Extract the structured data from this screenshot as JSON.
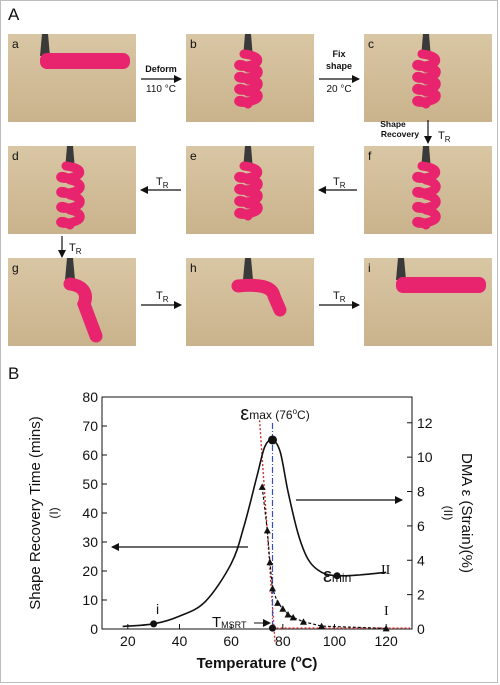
{
  "panel_a": {
    "label": "A",
    "photos": [
      {
        "letter": "a",
        "shape": "straight"
      },
      {
        "letter": "b",
        "shape": "helix"
      },
      {
        "letter": "c",
        "shape": "helix"
      },
      {
        "letter": "d",
        "shape": "loose-helix"
      },
      {
        "letter": "e",
        "shape": "helix"
      },
      {
        "letter": "f",
        "shape": "loose-helix"
      },
      {
        "letter": "g",
        "shape": "bent"
      },
      {
        "letter": "h",
        "shape": "bent"
      },
      {
        "letter": "i",
        "shape": "straight"
      }
    ],
    "arrows": {
      "ab_top": "Deform",
      "ab_bottom": "110 °C",
      "bc_top1": "Fix",
      "bc_top2": "shape",
      "bc_bottom": "20 °C",
      "cd_label1": "Shape",
      "cd_label2": "Recovery",
      "tr": "T",
      "tr_sub": "R"
    }
  },
  "panel_b": {
    "label": "B",
    "chart_data": {
      "type": "line",
      "xlabel": "Temperature (°C)",
      "xlabel_main": "Temperature (",
      "xlabel_sup": "o",
      "xlabel_end": "C)",
      "xlim": [
        10,
        130
      ],
      "xticks": [
        "20",
        "40",
        "60",
        "80",
        "100",
        "120"
      ],
      "ylabel_left": "Shape Recovery Time (mins)",
      "ylabel_left_sub": "(I)",
      "ylim_left": [
        0,
        80
      ],
      "yticks_left": [
        "0",
        "10",
        "20",
        "30",
        "40",
        "50",
        "60",
        "70",
        "80"
      ],
      "ylabel_right": "DMA ε (Strain)(%)",
      "ylabel_right_sub": "(II)",
      "ylim_right": [
        0,
        13.5
      ],
      "yticks_right": [
        "0",
        "2",
        "4",
        "6",
        "8",
        "10",
        "12"
      ],
      "series": [
        {
          "name": "I",
          "axis": "left",
          "x": [
            72,
            74,
            75,
            76,
            78,
            80,
            82,
            84,
            88,
            95,
            120
          ],
          "y": [
            49,
            34,
            23,
            14,
            9,
            7,
            5,
            4,
            2.5,
            1,
            0.2
          ]
        },
        {
          "name": "II",
          "axis": "right",
          "x": [
            18,
            30,
            40,
            50,
            60,
            65,
            70,
            73,
            76,
            79,
            82,
            86,
            90,
            95,
            101,
            110,
            120
          ],
          "y": [
            0.15,
            0.3,
            0.75,
            1.6,
            3.8,
            6.0,
            8.9,
            10.6,
            11.0,
            10.3,
            8.0,
            5.5,
            4.0,
            3.3,
            3.1,
            3.15,
            3.3
          ]
        }
      ],
      "fit_line": {
        "x": [
          71,
          77
        ],
        "y": [
          72,
          -5
        ]
      },
      "tmsrt_x": 76,
      "eps_max_x": 76,
      "markers": [
        {
          "series": "II",
          "x": 30,
          "y": 0.3
        },
        {
          "series": "II",
          "x": 101,
          "y": 3.1
        },
        {
          "series": "I",
          "x": 76,
          "y": 0.3
        },
        {
          "series": "II",
          "x": 76,
          "y": 11.0
        }
      ],
      "annotations": {
        "eps_max_sym": "ε",
        "eps_max_sub": "max",
        "eps_max_temp": " (76",
        "eps_max_sup": "o",
        "eps_max_end": "C)",
        "eps_min_sym": "ε",
        "eps_min_sub": "min",
        "point_i": "i",
        "curve_I": "I",
        "curve_II": "II",
        "tmsrt": "T",
        "tmsrt_sub": "MSRT"
      }
    }
  }
}
